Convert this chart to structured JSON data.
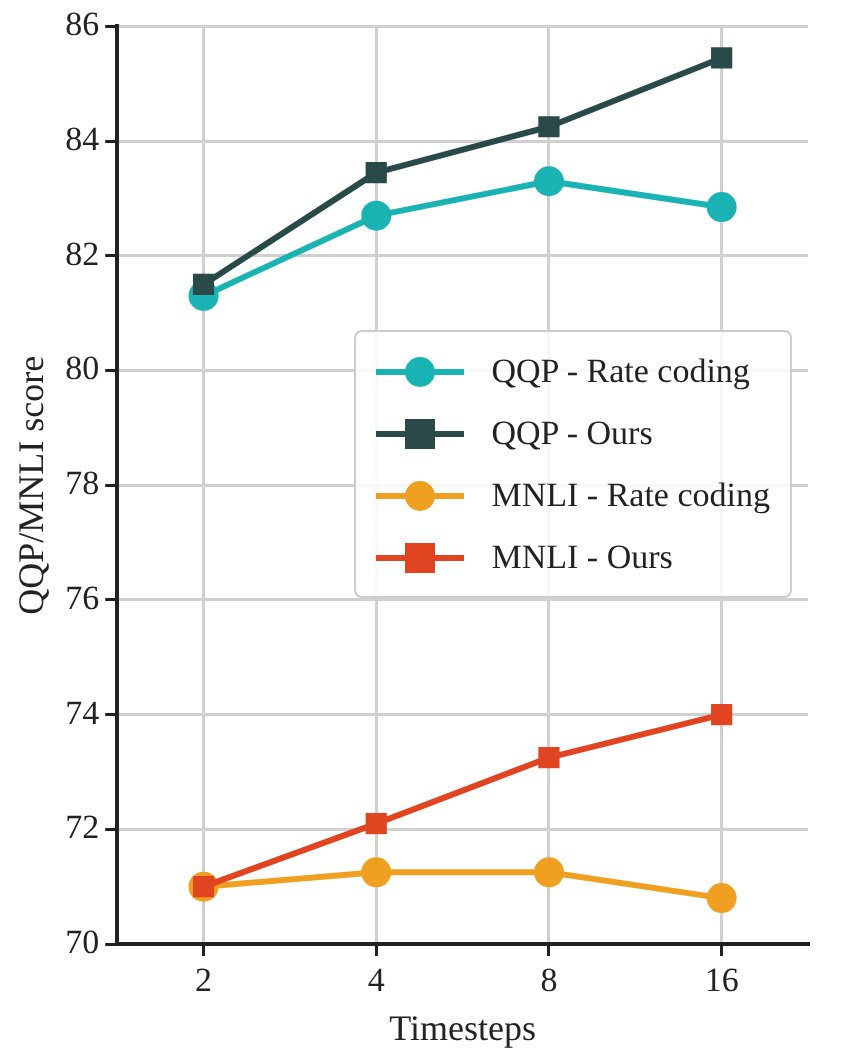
{
  "chart_data": {
    "type": "line",
    "xlabel": "Timesteps",
    "ylabel": "QQP/MNLI score",
    "categories": [
      "2",
      "4",
      "8",
      "16"
    ],
    "ylim": [
      70,
      86
    ],
    "yticks": [
      70,
      72,
      74,
      76,
      78,
      80,
      82,
      84,
      86
    ],
    "grid": true,
    "legend": "center right",
    "line_style": "solid",
    "series": [
      {
        "name": "QQP - Rate coding",
        "color": "#1ab3b3",
        "marker": "circle",
        "values": [
          81.3,
          82.7,
          83.3,
          82.85
        ]
      },
      {
        "name": "QQP - Ours",
        "color": "#2a4a4a",
        "marker": "square",
        "values": [
          81.5,
          83.45,
          84.25,
          85.45
        ]
      },
      {
        "name": "MNLI - Rate coding",
        "color": "#f0a020",
        "marker": "circle",
        "values": [
          71.0,
          71.25,
          71.25,
          70.8
        ]
      },
      {
        "name": "MNLI - Ours",
        "color": "#e04420",
        "marker": "square",
        "values": [
          71.0,
          72.1,
          73.25,
          74.0
        ]
      }
    ]
  }
}
